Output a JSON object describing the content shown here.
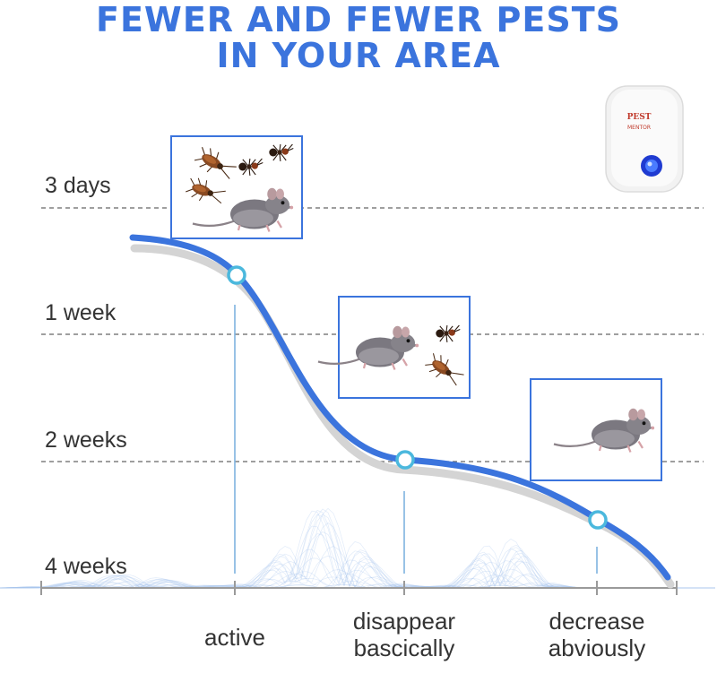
{
  "title_lines": [
    "FEWER AND FEWER PESTS",
    "IN YOUR AREA"
  ],
  "colors": {
    "accent": "#3b74dd",
    "title": "#3b74dd",
    "point": "#4bb8dd",
    "shadow": "#cfcfcf",
    "wave": "#a9c6ee"
  },
  "device": {
    "brand": "PEST",
    "sub": "MENTOR"
  },
  "chart_data": {
    "type": "line",
    "y_tick_labels": [
      "3 days",
      "1 week",
      "2 weeks",
      "4 weeks"
    ],
    "x_tick_labels": [
      [
        "active"
      ],
      [
        "disappear",
        "bascically"
      ],
      [
        "decrease",
        "abviously"
      ]
    ],
    "grid": "dashed horizontal lines at each time label",
    "points": [
      {
        "label": "active",
        "level": "between 3 days and 1 week"
      },
      {
        "label": "disappear bascically",
        "level": "2 weeks"
      },
      {
        "label": "decrease abviously",
        "level": "between 2 weeks and 4 weeks"
      }
    ],
    "illustrations": [
      {
        "near": "3 days",
        "shows": [
          "cockroaches",
          "ants",
          "rat"
        ]
      },
      {
        "near": "1 week",
        "shows": [
          "rat",
          "ant",
          "cockroach"
        ]
      },
      {
        "near": "2 weeks",
        "shows": [
          "rat"
        ]
      }
    ]
  }
}
